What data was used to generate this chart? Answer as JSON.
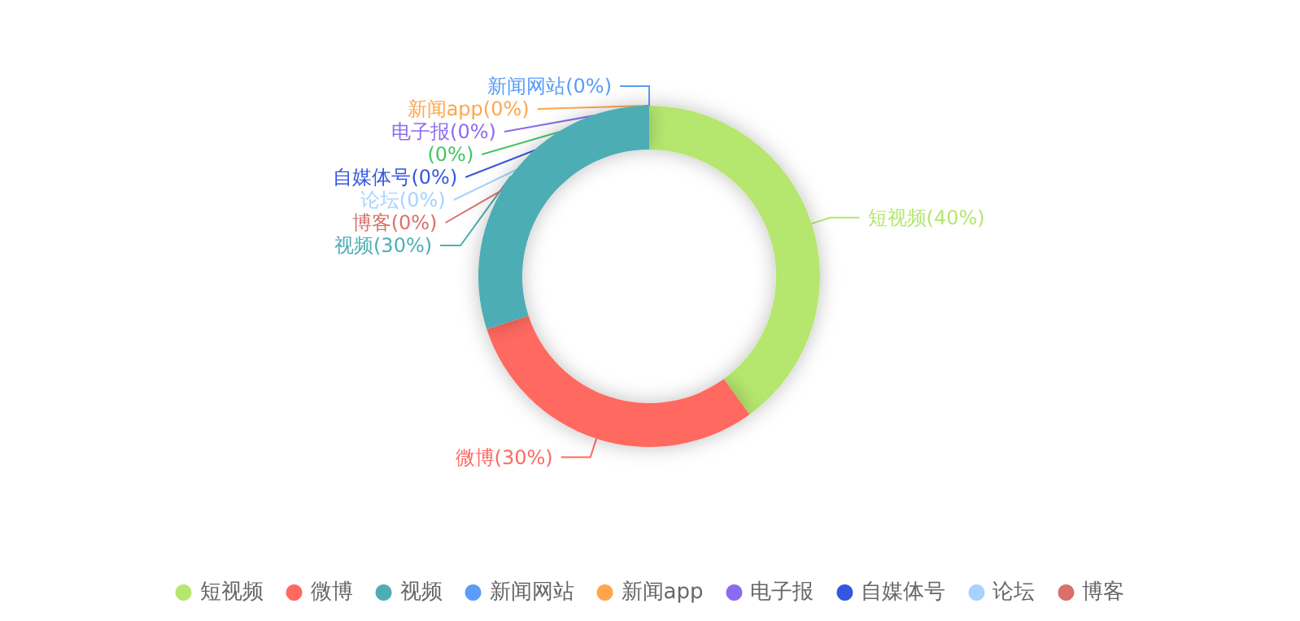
{
  "chart_data": {
    "type": "donut",
    "categories": [
      "短视频",
      "微博",
      "视频",
      "新闻网站",
      "新闻app",
      "电子报",
      null,
      "自媒体号",
      "论坛",
      "博客"
    ],
    "values": [
      40,
      30,
      30,
      0,
      0,
      0,
      0,
      0,
      0,
      0
    ],
    "value_labels": [
      "(40%)",
      "(30%)",
      "(30%)",
      "(0%)",
      "(0%)",
      "(0%)",
      "(0%)",
      "(0%)",
      "(0%)",
      "(0%)"
    ],
    "colors": [
      "#b5e76e",
      "#ff6961",
      "#4eadb4",
      "#5a9cf8",
      "#ffa64d",
      "#8b6cf0",
      "#45c466",
      "#3556e0",
      "#a6d3ff",
      "#d9706a"
    ],
    "legend": "bottom"
  }
}
